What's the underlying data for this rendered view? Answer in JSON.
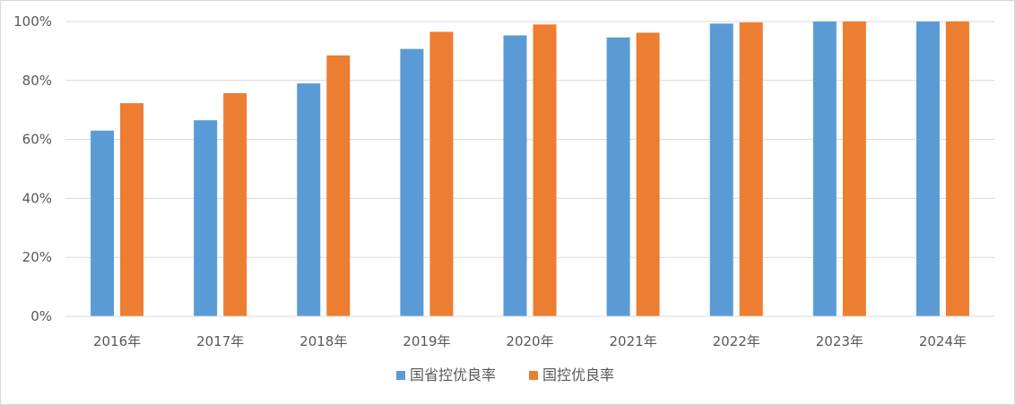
{
  "chart_data": {
    "type": "bar",
    "title": "",
    "xlabel": "",
    "ylabel": "",
    "categories": [
      "2016年",
      "2017年",
      "2018年",
      "2019年",
      "2020年",
      "2021年",
      "2022年",
      "2023年",
      "2024年"
    ],
    "series": [
      {
        "name": "国省控优良率",
        "color": "#5b9bd5",
        "values": [
          63,
          66.5,
          79,
          90.7,
          95.3,
          94.6,
          99.3,
          100,
          100
        ]
      },
      {
        "name": "国控优良率",
        "color": "#ed7d31",
        "values": [
          72.3,
          75.7,
          88.5,
          96.5,
          99,
          96.2,
          99.7,
          100,
          100
        ]
      }
    ],
    "ylim": [
      0,
      100
    ],
    "yticks": [
      "0%",
      "20%",
      "40%",
      "60%",
      "80%",
      "100%"
    ],
    "ytick_values": [
      0,
      20,
      40,
      60,
      80,
      100
    ],
    "grid": true,
    "legend_position": "bottom"
  }
}
